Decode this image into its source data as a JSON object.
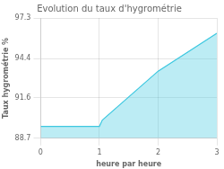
{
  "chart_data": {
    "type": "area",
    "title": "Evolution du taux d'hygrométrie",
    "x_label": "heure par heure",
    "y_label": "Taux hygrométrie %",
    "x": [
      0,
      1,
      1.05,
      2,
      3
    ],
    "values": [
      89.55,
      89.55,
      90.0,
      93.5,
      96.2
    ],
    "color": "#3ec8e0",
    "xlim": [
      0,
      3
    ],
    "ylim": [
      88.7,
      97.3
    ],
    "xticks": [
      0,
      1,
      2,
      3
    ],
    "yticks": [
      88.7,
      91.6,
      94.4,
      97.3
    ],
    "grid": true
  }
}
